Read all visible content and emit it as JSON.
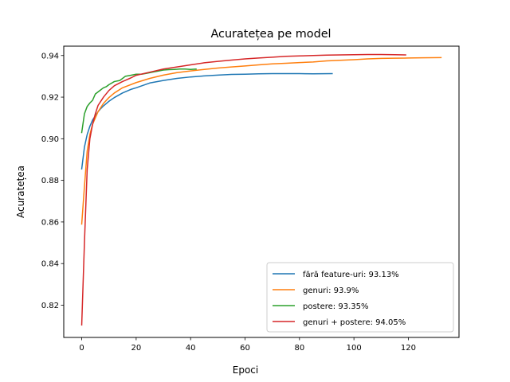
{
  "chart_data": {
    "type": "line",
    "title": "Acuratețea pe model",
    "xlabel": "Epoci",
    "ylabel": "Acuratețea",
    "xlim": [
      -6.6,
      138.6
    ],
    "ylim": [
      0.8045,
      0.9445
    ],
    "xticks": [
      0,
      20,
      40,
      60,
      80,
      100,
      120
    ],
    "yticks": [
      0.82,
      0.84,
      0.86,
      0.88,
      0.9,
      0.92,
      0.94
    ],
    "ytick_labels": [
      "0.82",
      "0.84",
      "0.86",
      "0.88",
      "0.90",
      "0.92",
      "0.94"
    ],
    "legend_position": "lower-right",
    "grid": false,
    "series": [
      {
        "name": "fără feature-uri: 93.13%",
        "color": "#1f77b4",
        "x": [
          0,
          1,
          2,
          3,
          4,
          5,
          6,
          7,
          8,
          10,
          12,
          15,
          18,
          20,
          25,
          30,
          35,
          40,
          45,
          50,
          55,
          60,
          65,
          70,
          75,
          80,
          85,
          92
        ],
        "y": [
          0.8855,
          0.896,
          0.902,
          0.906,
          0.909,
          0.911,
          0.913,
          0.9145,
          0.9158,
          0.918,
          0.9198,
          0.922,
          0.9237,
          0.9245,
          0.9268,
          0.928,
          0.929,
          0.9297,
          0.9302,
          0.9306,
          0.9309,
          0.931,
          0.9312,
          0.9313,
          0.9313,
          0.9313,
          0.9312,
          0.9313
        ]
      },
      {
        "name": "genuri: 93.9%",
        "color": "#ff7f0e",
        "x": [
          0,
          1,
          2,
          3,
          4,
          5,
          6,
          8,
          10,
          12,
          15,
          20,
          25,
          30,
          35,
          40,
          45,
          50,
          55,
          60,
          65,
          70,
          75,
          80,
          85,
          90,
          95,
          100,
          105,
          110,
          115,
          120,
          125,
          132
        ],
        "y": [
          0.859,
          0.877,
          0.894,
          0.902,
          0.907,
          0.91,
          0.913,
          0.917,
          0.9198,
          0.922,
          0.9245,
          0.927,
          0.929,
          0.9306,
          0.9318,
          0.9326,
          0.9333,
          0.934,
          0.9345,
          0.935,
          0.9355,
          0.936,
          0.9363,
          0.9366,
          0.9369,
          0.9374,
          0.9377,
          0.938,
          0.9384,
          0.9386,
          0.9387,
          0.9388,
          0.9389,
          0.939
        ]
      },
      {
        "name": "postere: 93.35%",
        "color": "#2ca02c",
        "x": [
          0,
          1,
          2,
          3,
          4,
          5,
          6,
          7,
          8,
          9,
          10,
          12,
          14,
          16,
          18,
          20,
          22,
          24,
          26,
          28,
          30,
          32,
          34,
          36,
          38,
          40,
          42
        ],
        "y": [
          0.903,
          0.912,
          0.9155,
          0.9172,
          0.9185,
          0.9215,
          0.9225,
          0.9235,
          0.9245,
          0.925,
          0.926,
          0.9275,
          0.928,
          0.93,
          0.9305,
          0.931,
          0.931,
          0.9315,
          0.932,
          0.9325,
          0.933,
          0.9332,
          0.9333,
          0.9335,
          0.9335,
          0.9333,
          0.9335
        ]
      },
      {
        "name": "genuri + postere: 94.05%",
        "color": "#d62728",
        "x": [
          0,
          1,
          2,
          3,
          4,
          5,
          6,
          8,
          10,
          12,
          15,
          18,
          20,
          25,
          30,
          35,
          40,
          45,
          50,
          55,
          60,
          65,
          70,
          75,
          80,
          85,
          90,
          95,
          100,
          105,
          110,
          115,
          119
        ],
        "y": [
          0.8105,
          0.85,
          0.885,
          0.9,
          0.907,
          0.912,
          0.916,
          0.92,
          0.9232,
          0.9255,
          0.9275,
          0.9292,
          0.9305,
          0.932,
          0.9335,
          0.9345,
          0.9355,
          0.9365,
          0.9372,
          0.9378,
          0.9384,
          0.9388,
          0.9392,
          0.9396,
          0.9398,
          0.94,
          0.9402,
          0.9403,
          0.9404,
          0.9405,
          0.9405,
          0.9404,
          0.9403
        ]
      }
    ]
  }
}
